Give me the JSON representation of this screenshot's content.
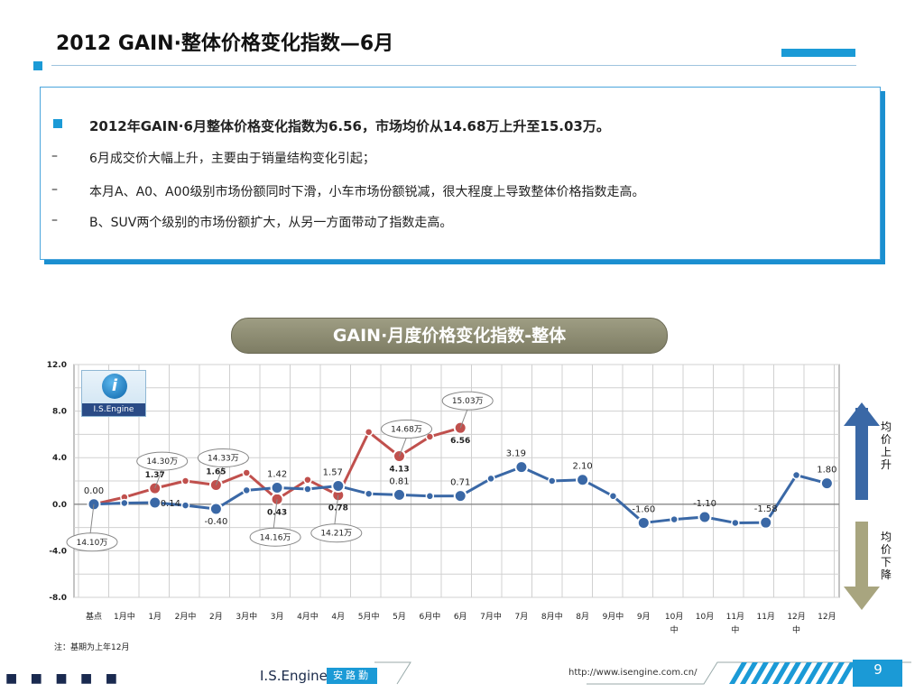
{
  "title": "2012 GAIN·整体价格变化指数—6月",
  "textbox": {
    "main": "2012年GAIN·6月整体价格变化指数为6.56，市场均价从14.68万上升至15.03万。",
    "items": [
      "6月成交价大幅上升，主要由于销量结构变化引起；",
      "本月A、A0、A00级别市场份额同时下滑，小车市场份额锐减，很大程度上导致整体价格指数走高。",
      "B、SUV两个级别的市场份额扩大，从另一方面带动了指数走高。"
    ],
    "dash": "–"
  },
  "chart_title": "GAIN·月度价格变化指数-整体",
  "logo": {
    "symbol": "i",
    "text": "I.S.Engine"
  },
  "arrows": {
    "up": [
      "均",
      "价",
      "上",
      "升"
    ],
    "down": [
      "均",
      "价",
      "下",
      "降"
    ],
    "up_color": "#3a68a6",
    "down_color": "#a8a57f"
  },
  "footnote": "注：基期为上年12月",
  "footer": {
    "dots": "■ ■ ■ ■ ■",
    "brand": "I.S.Engine",
    "tag": "安路勤",
    "url": "http://www.isengine.com.cn/",
    "page": "9"
  },
  "chart_data": {
    "type": "line",
    "ylim": [
      -8,
      12
    ],
    "yticks": [
      "12.0",
      "8.0",
      "4.0",
      "0.0",
      "-4.0",
      "-8.0"
    ],
    "grid": true,
    "categories": [
      "基点",
      "1月中",
      "1月",
      "2月中",
      "2月",
      "3月中",
      "3月",
      "4月中",
      "4月",
      "5月中",
      "5月",
      "6月中",
      "6月",
      "7月中",
      "7月",
      "8月中",
      "8月",
      "9月中",
      "9月",
      "10月中",
      "10月",
      "11月中",
      "11月",
      "12月中",
      "12月"
    ],
    "series": [
      {
        "color": "#3a68a6",
        "values": [
          0.0,
          0.1,
          0.14,
          -0.1,
          -0.4,
          1.2,
          1.42,
          1.3,
          1.57,
          0.9,
          0.81,
          0.7,
          0.71,
          2.2,
          3.19,
          2.0,
          2.1,
          0.7,
          -1.6,
          -1.3,
          -1.1,
          -1.6,
          -1.58,
          2.5,
          1.8
        ]
      },
      {
        "color": "#c0504d",
        "values": [
          0.0,
          0.6,
          1.37,
          2.0,
          1.65,
          2.7,
          0.43,
          2.1,
          0.78,
          6.2,
          4.13,
          5.8,
          6.56,
          null,
          null,
          null,
          null,
          null,
          null,
          null,
          null,
          null,
          null,
          null,
          null
        ]
      }
    ],
    "data_labels": [
      {
        "i": 0,
        "s": 0,
        "text": "0.00",
        "pos": "above"
      },
      {
        "i": 2,
        "s": 0,
        "text": "0.14",
        "pos": "right"
      },
      {
        "i": 4,
        "s": 0,
        "text": "-0.40",
        "pos": "below"
      },
      {
        "i": 6,
        "s": 0,
        "text": "1.42",
        "pos": "above"
      },
      {
        "i": 8,
        "s": 0,
        "text": "1.57",
        "pos": "aboveleft"
      },
      {
        "i": 10,
        "s": 0,
        "text": "0.81",
        "pos": "above"
      },
      {
        "i": 12,
        "s": 0,
        "text": "0.71",
        "pos": "above"
      },
      {
        "i": 14,
        "s": 0,
        "text": "3.19",
        "pos": "aboveleft"
      },
      {
        "i": 16,
        "s": 0,
        "text": "2.10",
        "pos": "above"
      },
      {
        "i": 18,
        "s": 0,
        "text": "-1.60",
        "pos": "above"
      },
      {
        "i": 20,
        "s": 0,
        "text": "-1.10",
        "pos": "above"
      },
      {
        "i": 22,
        "s": 0,
        "text": "-1.58",
        "pos": "above"
      },
      {
        "i": 24,
        "s": 0,
        "text": "1.80",
        "pos": "above"
      },
      {
        "i": 2,
        "s": 1,
        "text": "1.37",
        "pos": "above",
        "bold": true
      },
      {
        "i": 4,
        "s": 1,
        "text": "1.65",
        "pos": "above",
        "bold": true
      },
      {
        "i": 6,
        "s": 1,
        "text": "0.43",
        "pos": "below",
        "bold": true
      },
      {
        "i": 8,
        "s": 1,
        "text": "0.78",
        "pos": "below",
        "bold": true
      },
      {
        "i": 10,
        "s": 1,
        "text": "4.13",
        "pos": "below",
        "bold": true
      },
      {
        "i": 12,
        "s": 1,
        "text": "6.56",
        "pos": "below",
        "bold": true
      }
    ],
    "price_bubbles": [
      {
        "i": 0,
        "text": "14.10万",
        "side": "below"
      },
      {
        "i": 2,
        "text": "14.30万",
        "side": "above"
      },
      {
        "i": 4,
        "text": "14.33万",
        "side": "above"
      },
      {
        "i": 6,
        "text": "14.16万",
        "side": "below"
      },
      {
        "i": 8,
        "text": "14.21万",
        "side": "below"
      },
      {
        "i": 10,
        "text": "14.68万",
        "side": "above"
      },
      {
        "i": 12,
        "text": "15.03万",
        "side": "above"
      }
    ]
  }
}
